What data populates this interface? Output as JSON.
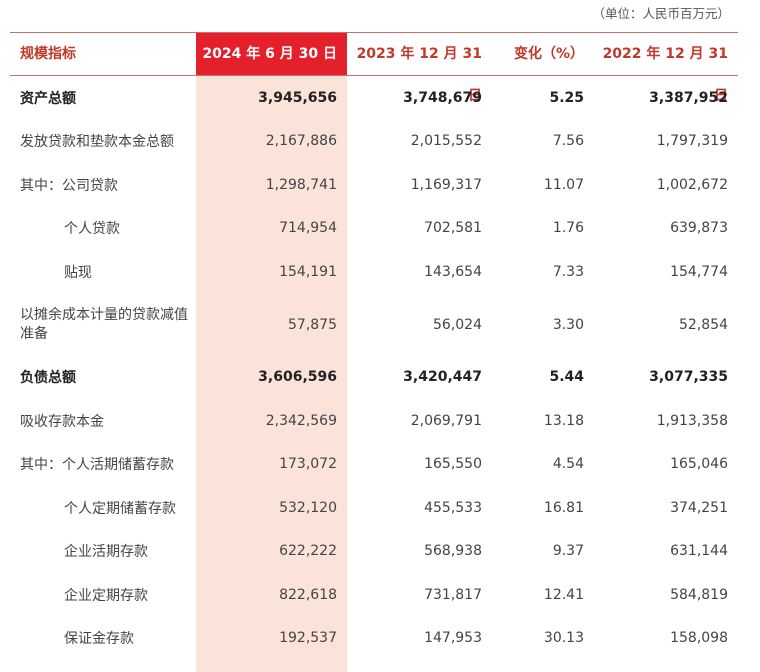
{
  "unit_note": "（单位：人民币百万元）",
  "headers": {
    "label": "规模指标",
    "col1": "2024 年 6 月 30 日",
    "col2": "2023 年 12 月 31 日",
    "col3": "变化（%）",
    "col4": "2022 年 12 月 31 日"
  },
  "colors": {
    "accent": "#e3202c",
    "highlight_column": "#fbe3da",
    "header_text": "#c0392b"
  },
  "rows": [
    {
      "label": "资产总额",
      "v1": "3,945,656",
      "v2": "3,748,679",
      "v3": "5.25",
      "v4": "3,387,952"
    },
    {
      "label": "发放贷款和垫款本金总额",
      "v1": "2,167,886",
      "v2": "2,015,552",
      "v3": "7.56",
      "v4": "1,797,319"
    },
    {
      "label": "其中：公司贷款",
      "v1": "1,298,741",
      "v2": "1,169,317",
      "v3": "11.07",
      "v4": "1,002,672"
    },
    {
      "label": "个人贷款",
      "v1": "714,954",
      "v2": "702,581",
      "v3": "1.76",
      "v4": "639,873"
    },
    {
      "label": "贴现",
      "v1": "154,191",
      "v2": "143,654",
      "v3": "7.33",
      "v4": "154,774"
    },
    {
      "label": "以摊余成本计量的贷款减值准备",
      "v1": "57,875",
      "v2": "56,024",
      "v3": "3.30",
      "v4": "52,854"
    },
    {
      "label": "负债总额",
      "v1": "3,606,596",
      "v2": "3,420,447",
      "v3": "5.44",
      "v4": "3,077,335"
    },
    {
      "label": "吸收存款本金",
      "v1": "2,342,569",
      "v2": "2,069,791",
      "v3": "13.18",
      "v4": "1,913,358"
    },
    {
      "label": "其中：个人活期储蓄存款",
      "v1": "173,072",
      "v2": "165,550",
      "v3": "4.54",
      "v4": "165,046"
    },
    {
      "label": "个人定期储蓄存款",
      "v1": "532,120",
      "v2": "455,533",
      "v3": "16.81",
      "v4": "374,251"
    },
    {
      "label": "企业活期存款",
      "v1": "622,222",
      "v2": "568,938",
      "v3": "9.37",
      "v4": "631,144"
    },
    {
      "label": "企业定期存款",
      "v1": "822,618",
      "v2": "731,817",
      "v3": "12.41",
      "v4": "584,819"
    },
    {
      "label": "保证金存款",
      "v1": "192,537",
      "v2": "147,953",
      "v3": "30.13",
      "v4": "158,098"
    }
  ]
}
